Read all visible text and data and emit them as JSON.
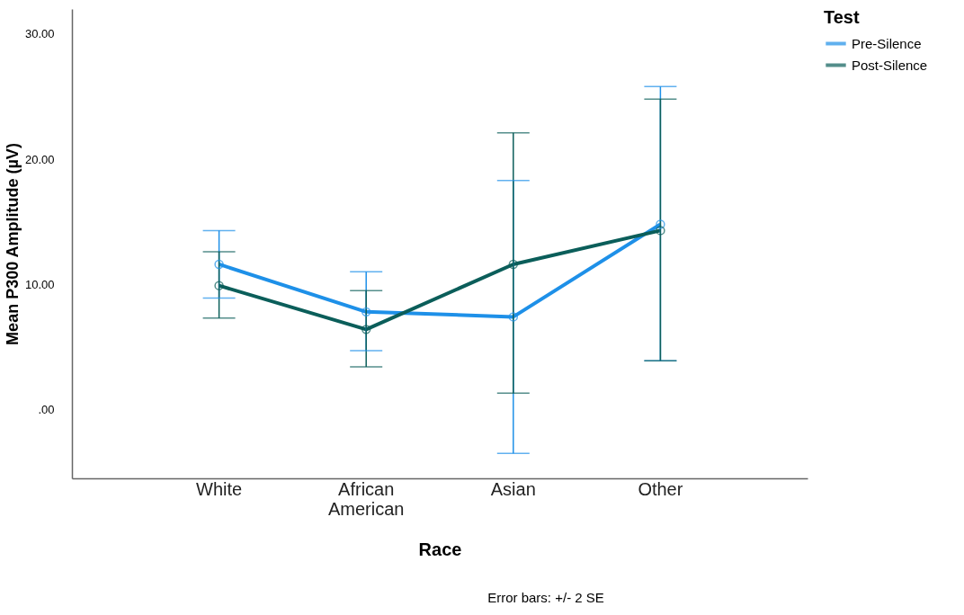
{
  "chart_data": {
    "type": "line",
    "xlabel": "Race",
    "ylabel": "Mean P300 Amplitude (µV)",
    "legend_title": "Test",
    "categories": [
      "White",
      "African American",
      "Asian",
      "Other"
    ],
    "series": [
      {
        "name": "Pre-Silence",
        "color": "#1e90e8",
        "values": [
          11.6,
          7.8,
          7.4,
          14.8
        ],
        "errors": [
          [
            8.9,
            14.3
          ],
          [
            4.7,
            11.0
          ],
          [
            -3.5,
            18.3
          ],
          [
            3.9,
            25.8
          ]
        ]
      },
      {
        "name": "Post-Silence",
        "color": "#0b5e5a",
        "values": [
          9.9,
          6.4,
          11.6,
          14.3
        ],
        "errors": [
          [
            7.3,
            12.6
          ],
          [
            3.4,
            9.5
          ],
          [
            1.3,
            22.1
          ],
          [
            3.9,
            24.8
          ]
        ]
      }
    ],
    "ylim": [
      -5.5,
      32
    ],
    "yticks": [
      {
        "value": 0,
        "label": ".00"
      },
      {
        "value": 10,
        "label": "10.00"
      },
      {
        "value": 20,
        "label": "20.00"
      },
      {
        "value": 30,
        "label": "30.00"
      }
    ],
    "grid": false,
    "legend": "top right",
    "marker": "circle",
    "line_style": "solid",
    "annotations": [
      "Error bars: +/- 2 SE"
    ]
  }
}
